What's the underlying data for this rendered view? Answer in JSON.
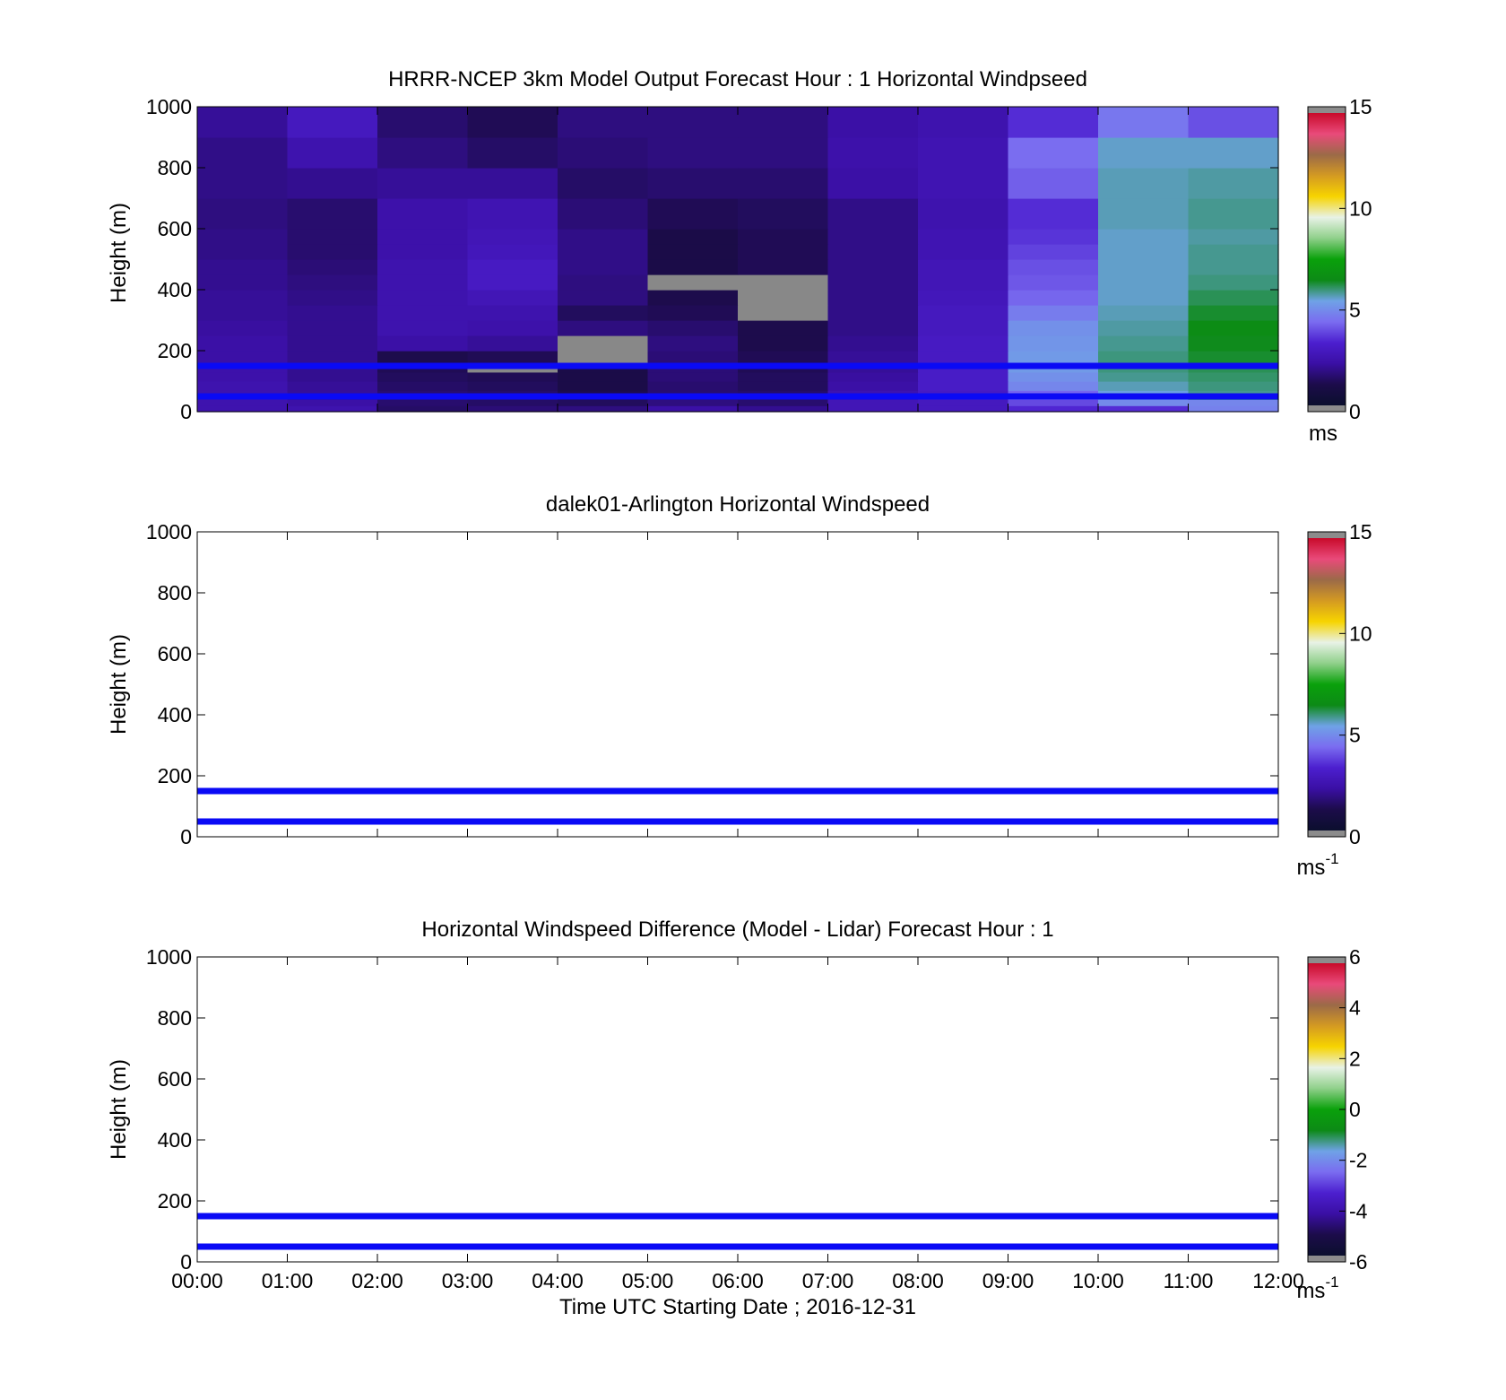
{
  "colormap_stops": [
    "#0b0f2e",
    "#1c0c4a",
    "#3a0fa4",
    "#4c1fcf",
    "#7a6cf0",
    "#6fa2e6",
    "#0c8a16",
    "#0aa10b",
    "#8fd08a",
    "#e8f2e6",
    "#f7d400",
    "#d49a22",
    "#9b6a48",
    "#e94a7a",
    "#c80a2a"
  ],
  "chart_data": [
    {
      "type": "heatmap",
      "title": "HRRR-NCEP 3km Model Output   Forecast Hour : 1 Horizontal Windpseed",
      "ylabel": "Height (m)",
      "xlabel": "",
      "xlim": [
        0,
        12
      ],
      "ylim": [
        0,
        1000
      ],
      "yticks": [
        0,
        200,
        400,
        600,
        800,
        1000
      ],
      "xticks": [
        0,
        1,
        2,
        3,
        4,
        5,
        6,
        7,
        8,
        9,
        10,
        11,
        12
      ],
      "show_xtick_labels": false,
      "time_columns": [
        0,
        1,
        2,
        3,
        4,
        5,
        6,
        7,
        8,
        9,
        10,
        11
      ],
      "height_levels": [
        0,
        20,
        40,
        70,
        100,
        130,
        160,
        200,
        250,
        300,
        350,
        400,
        450,
        500,
        550,
        600,
        700,
        800,
        900,
        1000
      ],
      "values_ms": [
        [
          2.4,
          2.4,
          1.4,
          1.6,
          1.7,
          2.2,
          1.9,
          2.6,
          2.8,
          3.3,
          3.4,
          4.7
        ],
        [
          2.4,
          2.2,
          1.5,
          1.4,
          1.3,
          1.7,
          1.5,
          2.6,
          2.8,
          3.8,
          4.9,
          4.8
        ],
        [
          2.4,
          2.0,
          1.5,
          1.4,
          1.1,
          1.5,
          1.4,
          2.4,
          2.9,
          4.2,
          5.4,
          5.8
        ],
        [
          2.4,
          2.0,
          1.4,
          1.3,
          1.0,
          1.5,
          1.3,
          2.2,
          3.0,
          4.8,
          5.6,
          5.9
        ],
        [
          2.3,
          1.9,
          1.3,
          1.2,
          1.0,
          1.6,
          1.3,
          2.1,
          3.0,
          5.0,
          5.8,
          6.0
        ],
        [
          2.3,
          1.9,
          1.2,
          null,
          1.0,
          1.6,
          1.2,
          2.0,
          3.0,
          5.2,
          5.9,
          6.1
        ],
        [
          2.2,
          1.9,
          1.1,
          1.2,
          null,
          1.6,
          1.2,
          2.0,
          2.9,
          5.2,
          5.9,
          6.3
        ],
        [
          2.2,
          1.9,
          2.2,
          2.0,
          null,
          1.7,
          1.1,
          1.9,
          2.9,
          5.1,
          5.8,
          6.4
        ],
        [
          2.1,
          1.9,
          2.4,
          2.3,
          1.7,
          1.5,
          1.1,
          1.8,
          2.8,
          5.0,
          5.7,
          6.5
        ],
        [
          2.0,
          1.9,
          2.4,
          2.4,
          1.3,
          1.2,
          null,
          1.8,
          2.8,
          4.6,
          5.6,
          6.3
        ],
        [
          2.0,
          1.8,
          2.4,
          2.6,
          1.7,
          1.1,
          null,
          1.8,
          2.7,
          4.2,
          5.5,
          6.1
        ],
        [
          1.9,
          1.7,
          2.4,
          2.9,
          1.7,
          null,
          null,
          1.8,
          2.6,
          4.0,
          5.5,
          5.9
        ],
        [
          1.9,
          1.6,
          2.4,
          2.9,
          1.8,
          1.0,
          1.2,
          1.8,
          2.6,
          3.9,
          5.5,
          5.8
        ],
        [
          1.8,
          1.5,
          2.3,
          2.7,
          1.8,
          1.0,
          1.2,
          1.8,
          2.5,
          3.7,
          5.5,
          5.8
        ],
        [
          1.8,
          1.5,
          2.3,
          2.6,
          1.8,
          1.0,
          1.2,
          1.8,
          2.5,
          3.5,
          5.5,
          5.7
        ],
        [
          1.7,
          1.5,
          2.3,
          2.5,
          1.6,
          1.2,
          1.3,
          1.8,
          2.4,
          3.4,
          5.6,
          5.8
        ],
        [
          1.8,
          1.9,
          2.0,
          2.0,
          1.4,
          1.5,
          1.5,
          2.2,
          2.5,
          4.1,
          5.6,
          5.7
        ],
        [
          1.8,
          2.4,
          1.7,
          1.4,
          1.6,
          1.7,
          1.7,
          2.3,
          2.5,
          4.3,
          5.5,
          5.5
        ],
        [
          2.0,
          2.8,
          1.5,
          1.2,
          1.7,
          1.7,
          1.7,
          2.2,
          2.4,
          3.4,
          4.5,
          3.9
        ]
      ],
      "missing_color": "#888888",
      "reference_lines_m": [
        50,
        150
      ],
      "colorbar": {
        "min": 0,
        "max": 15,
        "ticks": [
          0,
          5,
          10,
          15
        ],
        "label": "ms",
        "superscript": ""
      }
    },
    {
      "type": "heatmap",
      "title": "dalek01-Arlington  Horizontal Windspeed",
      "ylabel": "Height (m)",
      "xlabel": "",
      "xlim": [
        0,
        12
      ],
      "ylim": [
        0,
        1000
      ],
      "yticks": [
        0,
        200,
        400,
        600,
        800,
        1000
      ],
      "xticks": [
        0,
        1,
        2,
        3,
        4,
        5,
        6,
        7,
        8,
        9,
        10,
        11,
        12
      ],
      "show_xtick_labels": false,
      "values_ms": [],
      "reference_lines_m": [
        50,
        150
      ],
      "colorbar": {
        "min": 0,
        "max": 15,
        "ticks": [
          0,
          5,
          10,
          15
        ],
        "label": "ms",
        "superscript": "-1"
      }
    },
    {
      "type": "heatmap",
      "title": "Horizontal Windspeed Difference (Model - Lidar) Forecast Hour : 1",
      "ylabel": "Height (m)",
      "xlabel": "Time UTC  Starting Date ; 2016-12-31",
      "xlim": [
        0,
        12
      ],
      "ylim": [
        0,
        1000
      ],
      "yticks": [
        0,
        200,
        400,
        600,
        800,
        1000
      ],
      "xticks": [
        0,
        1,
        2,
        3,
        4,
        5,
        6,
        7,
        8,
        9,
        10,
        11,
        12
      ],
      "xtick_labels": [
        "00:00",
        "01:00",
        "02:00",
        "03:00",
        "04:00",
        "05:00",
        "06:00",
        "07:00",
        "08:00",
        "09:00",
        "10:00",
        "11:00",
        "12:00"
      ],
      "show_xtick_labels": true,
      "values_ms": [],
      "reference_lines_m": [
        50,
        150
      ],
      "colorbar": {
        "min": -6,
        "max": 6,
        "ticks": [
          -6,
          -4,
          -2,
          0,
          2,
          4,
          6
        ],
        "label": "ms",
        "superscript": "-1"
      }
    }
  ]
}
